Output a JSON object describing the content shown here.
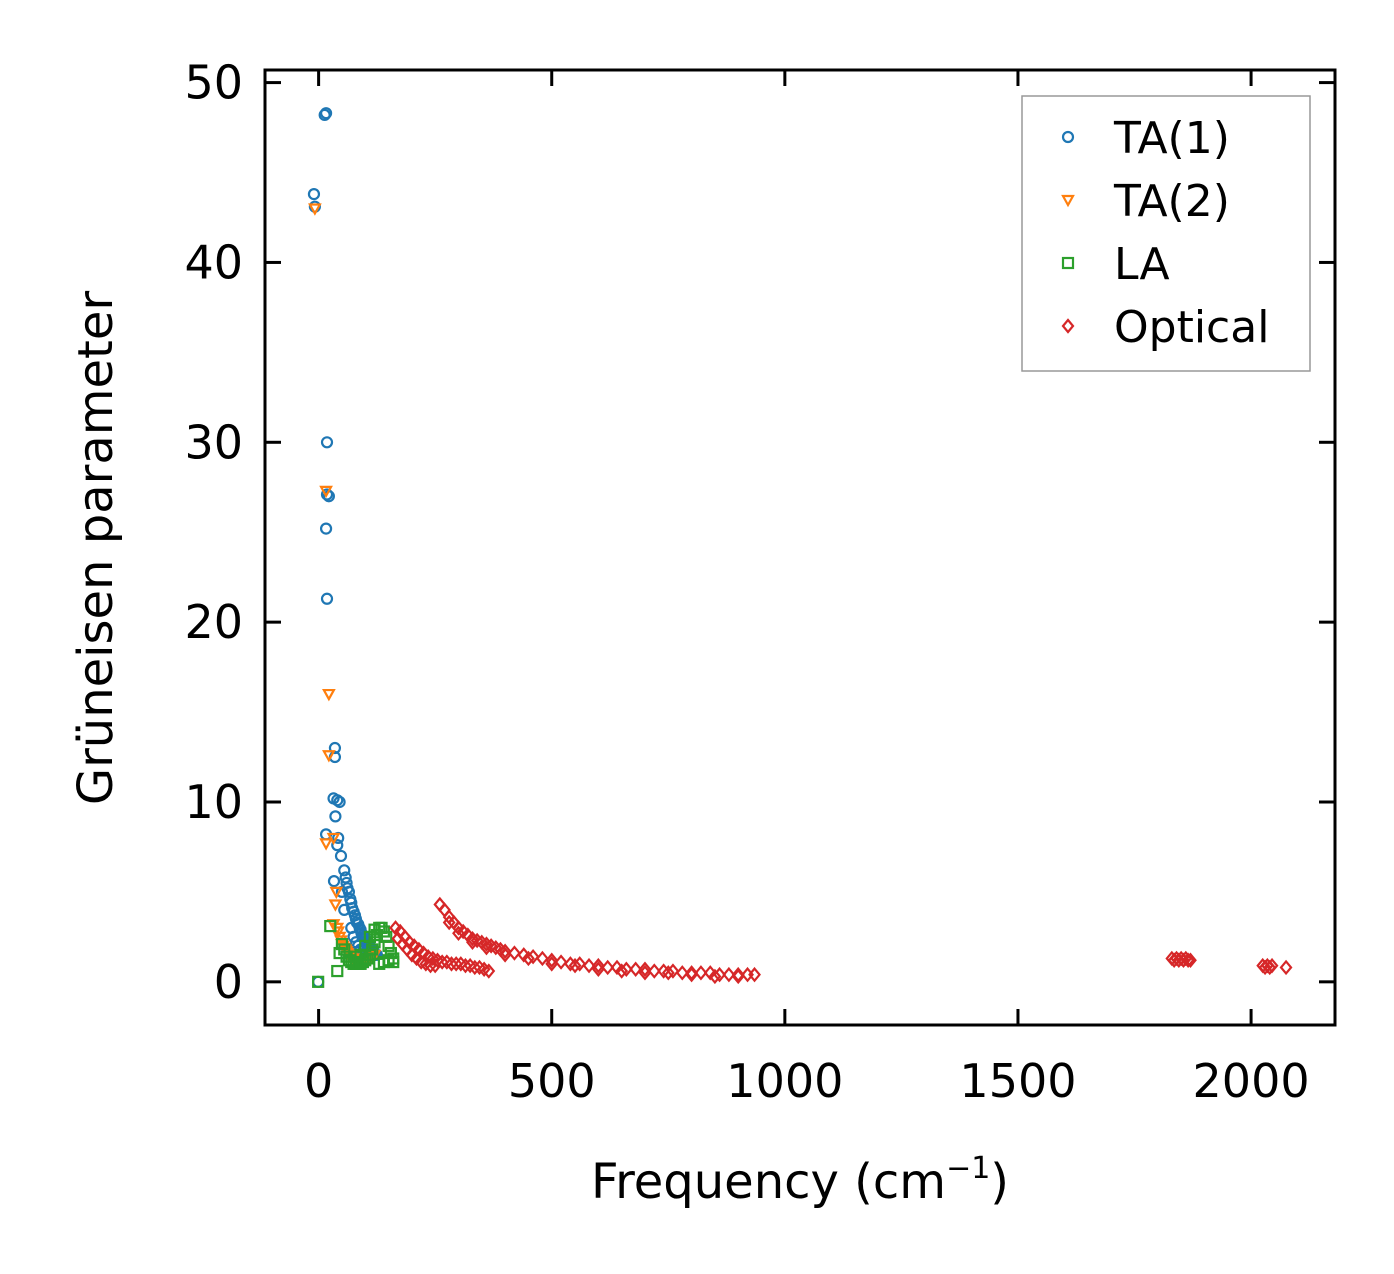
{
  "chart_data": {
    "type": "scatter",
    "xlabel": "Frequency (cm",
    "xlabel_sup": "−1",
    "xlabel_close": ")",
    "ylabel": "Grüneisen parameter",
    "xlim": [
      -115,
      2180
    ],
    "ylim": [
      -2.4,
      50.7
    ],
    "xticks": [
      0,
      500,
      1000,
      1500,
      2000
    ],
    "yticks": [
      0,
      10,
      20,
      30,
      40,
      50
    ],
    "grid": false,
    "legend_position": "top-right",
    "series": [
      {
        "name": "TA(1)",
        "color": "#1f77b4",
        "marker": "circle",
        "points": [
          [
            13,
            48.2
          ],
          [
            16,
            48.3
          ],
          [
            -10,
            43.8
          ],
          [
            -8,
            43.1
          ],
          [
            18,
            30.0
          ],
          [
            18,
            27.1
          ],
          [
            22,
            27.0
          ],
          [
            16,
            25.2
          ],
          [
            18,
            21.3
          ],
          [
            35,
            13.0
          ],
          [
            35,
            12.5
          ],
          [
            32,
            10.2
          ],
          [
            40,
            10.1
          ],
          [
            45,
            10.0
          ],
          [
            36,
            9.2
          ],
          [
            16,
            8.2
          ],
          [
            42,
            8.0
          ],
          [
            40,
            7.6
          ],
          [
            48,
            7.0
          ],
          [
            33,
            5.6
          ],
          [
            55,
            6.2
          ],
          [
            58,
            5.8
          ],
          [
            60,
            5.5
          ],
          [
            62,
            5.2
          ],
          [
            65,
            5.0
          ],
          [
            50,
            5.0
          ],
          [
            68,
            4.6
          ],
          [
            70,
            4.4
          ],
          [
            72,
            4.1
          ],
          [
            55,
            4.0
          ],
          [
            75,
            3.9
          ],
          [
            78,
            3.7
          ],
          [
            80,
            3.5
          ],
          [
            82,
            3.3
          ],
          [
            85,
            3.2
          ],
          [
            88,
            3.0
          ],
          [
            90,
            2.9
          ],
          [
            92,
            2.7
          ],
          [
            95,
            2.6
          ],
          [
            98,
            2.5
          ],
          [
            100,
            2.4
          ],
          [
            102,
            2.3
          ],
          [
            105,
            2.2
          ],
          [
            108,
            2.1
          ],
          [
            110,
            2.0
          ],
          [
            112,
            1.9
          ],
          [
            115,
            1.8
          ],
          [
            118,
            1.7
          ],
          [
            120,
            1.6
          ],
          [
            122,
            1.5
          ],
          [
            125,
            1.5
          ],
          [
            70,
            3.0
          ],
          [
            75,
            2.5
          ],
          [
            80,
            2.2
          ],
          [
            85,
            2.0
          ],
          [
            90,
            1.8
          ],
          [
            95,
            1.7
          ],
          [
            100,
            1.6
          ],
          [
            105,
            1.5
          ],
          [
            110,
            1.5
          ],
          [
            -1,
            0.0
          ]
        ]
      },
      {
        "name": "TA(2)",
        "color": "#ff7f0e",
        "marker": "triangle-down",
        "points": [
          [
            -8,
            43.0
          ],
          [
            16,
            27.3
          ],
          [
            22,
            16.0
          ],
          [
            22,
            12.6
          ],
          [
            32,
            8.0
          ],
          [
            16,
            7.7
          ],
          [
            32,
            3.2
          ],
          [
            36,
            4.3
          ],
          [
            38,
            5.0
          ],
          [
            40,
            3.0
          ],
          [
            42,
            2.8
          ],
          [
            45,
            2.5
          ],
          [
            48,
            2.3
          ],
          [
            50,
            2.1
          ],
          [
            52,
            2.0
          ],
          [
            55,
            1.9
          ],
          [
            58,
            1.8
          ],
          [
            60,
            1.7
          ],
          [
            62,
            1.6
          ],
          [
            65,
            1.5
          ],
          [
            68,
            1.4
          ],
          [
            70,
            1.4
          ],
          [
            72,
            1.3
          ],
          [
            75,
            1.3
          ],
          [
            78,
            1.2
          ],
          [
            80,
            1.2
          ],
          [
            85,
            1.2
          ],
          [
            90,
            1.1
          ],
          [
            95,
            1.1
          ],
          [
            100,
            1.1
          ],
          [
            105,
            1.2
          ],
          [
            110,
            1.3
          ],
          [
            115,
            1.4
          ],
          [
            120,
            1.5
          ]
        ]
      },
      {
        "name": "LA",
        "color": "#2ca02c",
        "marker": "square",
        "points": [
          [
            -1,
            0.0
          ],
          [
            25,
            3.1
          ],
          [
            40,
            0.6
          ],
          [
            45,
            1.6
          ],
          [
            50,
            2.1
          ],
          [
            55,
            1.8
          ],
          [
            60,
            1.4
          ],
          [
            65,
            1.2
          ],
          [
            70,
            1.1
          ],
          [
            75,
            1.0
          ],
          [
            80,
            1.0
          ],
          [
            85,
            1.0
          ],
          [
            90,
            1.0
          ],
          [
            95,
            1.1
          ],
          [
            100,
            1.2
          ],
          [
            105,
            1.3
          ],
          [
            110,
            1.5
          ],
          [
            115,
            1.8
          ],
          [
            120,
            2.2
          ],
          [
            125,
            2.6
          ],
          [
            130,
            3.0
          ],
          [
            135,
            3.0
          ],
          [
            140,
            2.8
          ],
          [
            145,
            2.5
          ],
          [
            150,
            2.0
          ],
          [
            155,
            1.6
          ],
          [
            160,
            1.3
          ],
          [
            130,
            1.0
          ],
          [
            140,
            1.1
          ],
          [
            150,
            1.2
          ],
          [
            160,
            1.1
          ],
          [
            100,
            2.0
          ],
          [
            110,
            2.5
          ],
          [
            120,
            2.9
          ],
          [
            90,
            1.5
          ],
          [
            80,
            1.4
          ]
        ]
      },
      {
        "name": "Optical",
        "color": "#d62728",
        "marker": "diamond",
        "points": [
          [
            165,
            3.0
          ],
          [
            175,
            2.8
          ],
          [
            185,
            2.5
          ],
          [
            195,
            2.2
          ],
          [
            205,
            2.0
          ],
          [
            215,
            1.8
          ],
          [
            225,
            1.6
          ],
          [
            235,
            1.4
          ],
          [
            245,
            1.3
          ],
          [
            255,
            1.2
          ],
          [
            265,
            1.1
          ],
          [
            275,
            1.1
          ],
          [
            285,
            1.0
          ],
          [
            295,
            1.0
          ],
          [
            305,
            1.0
          ],
          [
            315,
            0.9
          ],
          [
            325,
            0.9
          ],
          [
            335,
            0.8
          ],
          [
            345,
            0.8
          ],
          [
            355,
            0.7
          ],
          [
            365,
            0.6
          ],
          [
            170,
            2.4
          ],
          [
            180,
            2.1
          ],
          [
            190,
            1.8
          ],
          [
            200,
            1.5
          ],
          [
            210,
            1.3
          ],
          [
            220,
            1.1
          ],
          [
            230,
            1.0
          ],
          [
            240,
            0.9
          ],
          [
            250,
            0.9
          ],
          [
            260,
            4.3
          ],
          [
            270,
            4.0
          ],
          [
            280,
            3.6
          ],
          [
            290,
            3.3
          ],
          [
            300,
            3.0
          ],
          [
            310,
            2.8
          ],
          [
            320,
            2.6
          ],
          [
            330,
            2.4
          ],
          [
            340,
            2.3
          ],
          [
            350,
            2.2
          ],
          [
            360,
            2.1
          ],
          [
            370,
            2.0
          ],
          [
            380,
            1.9
          ],
          [
            390,
            1.8
          ],
          [
            400,
            1.7
          ],
          [
            420,
            1.6
          ],
          [
            440,
            1.5
          ],
          [
            460,
            1.4
          ],
          [
            480,
            1.3
          ],
          [
            500,
            1.2
          ],
          [
            520,
            1.1
          ],
          [
            540,
            1.0
          ],
          [
            560,
            1.0
          ],
          [
            580,
            0.9
          ],
          [
            600,
            0.9
          ],
          [
            620,
            0.8
          ],
          [
            640,
            0.8
          ],
          [
            660,
            0.7
          ],
          [
            680,
            0.7
          ],
          [
            700,
            0.7
          ],
          [
            720,
            0.6
          ],
          [
            740,
            0.6
          ],
          [
            760,
            0.6
          ],
          [
            780,
            0.5
          ],
          [
            800,
            0.5
          ],
          [
            820,
            0.5
          ],
          [
            840,
            0.5
          ],
          [
            860,
            0.4
          ],
          [
            880,
            0.4
          ],
          [
            900,
            0.4
          ],
          [
            920,
            0.4
          ],
          [
            935,
            0.4
          ],
          [
            280,
            3.3
          ],
          [
            300,
            2.7
          ],
          [
            330,
            2.2
          ],
          [
            360,
            1.9
          ],
          [
            400,
            1.5
          ],
          [
            450,
            1.3
          ],
          [
            500,
            1.0
          ],
          [
            550,
            0.9
          ],
          [
            600,
            0.7
          ],
          [
            650,
            0.6
          ],
          [
            700,
            0.5
          ],
          [
            750,
            0.5
          ],
          [
            800,
            0.4
          ],
          [
            850,
            0.3
          ],
          [
            900,
            0.3
          ],
          [
            1830,
            1.3
          ],
          [
            1835,
            1.2
          ],
          [
            1840,
            1.3
          ],
          [
            1845,
            1.2
          ],
          [
            1850,
            1.3
          ],
          [
            1855,
            1.2
          ],
          [
            1860,
            1.3
          ],
          [
            1865,
            1.2
          ],
          [
            1870,
            1.2
          ],
          [
            2025,
            0.9
          ],
          [
            2030,
            0.8
          ],
          [
            2035,
            0.9
          ],
          [
            2040,
            0.8
          ],
          [
            2045,
            0.9
          ],
          [
            2075,
            0.8
          ]
        ]
      }
    ]
  }
}
